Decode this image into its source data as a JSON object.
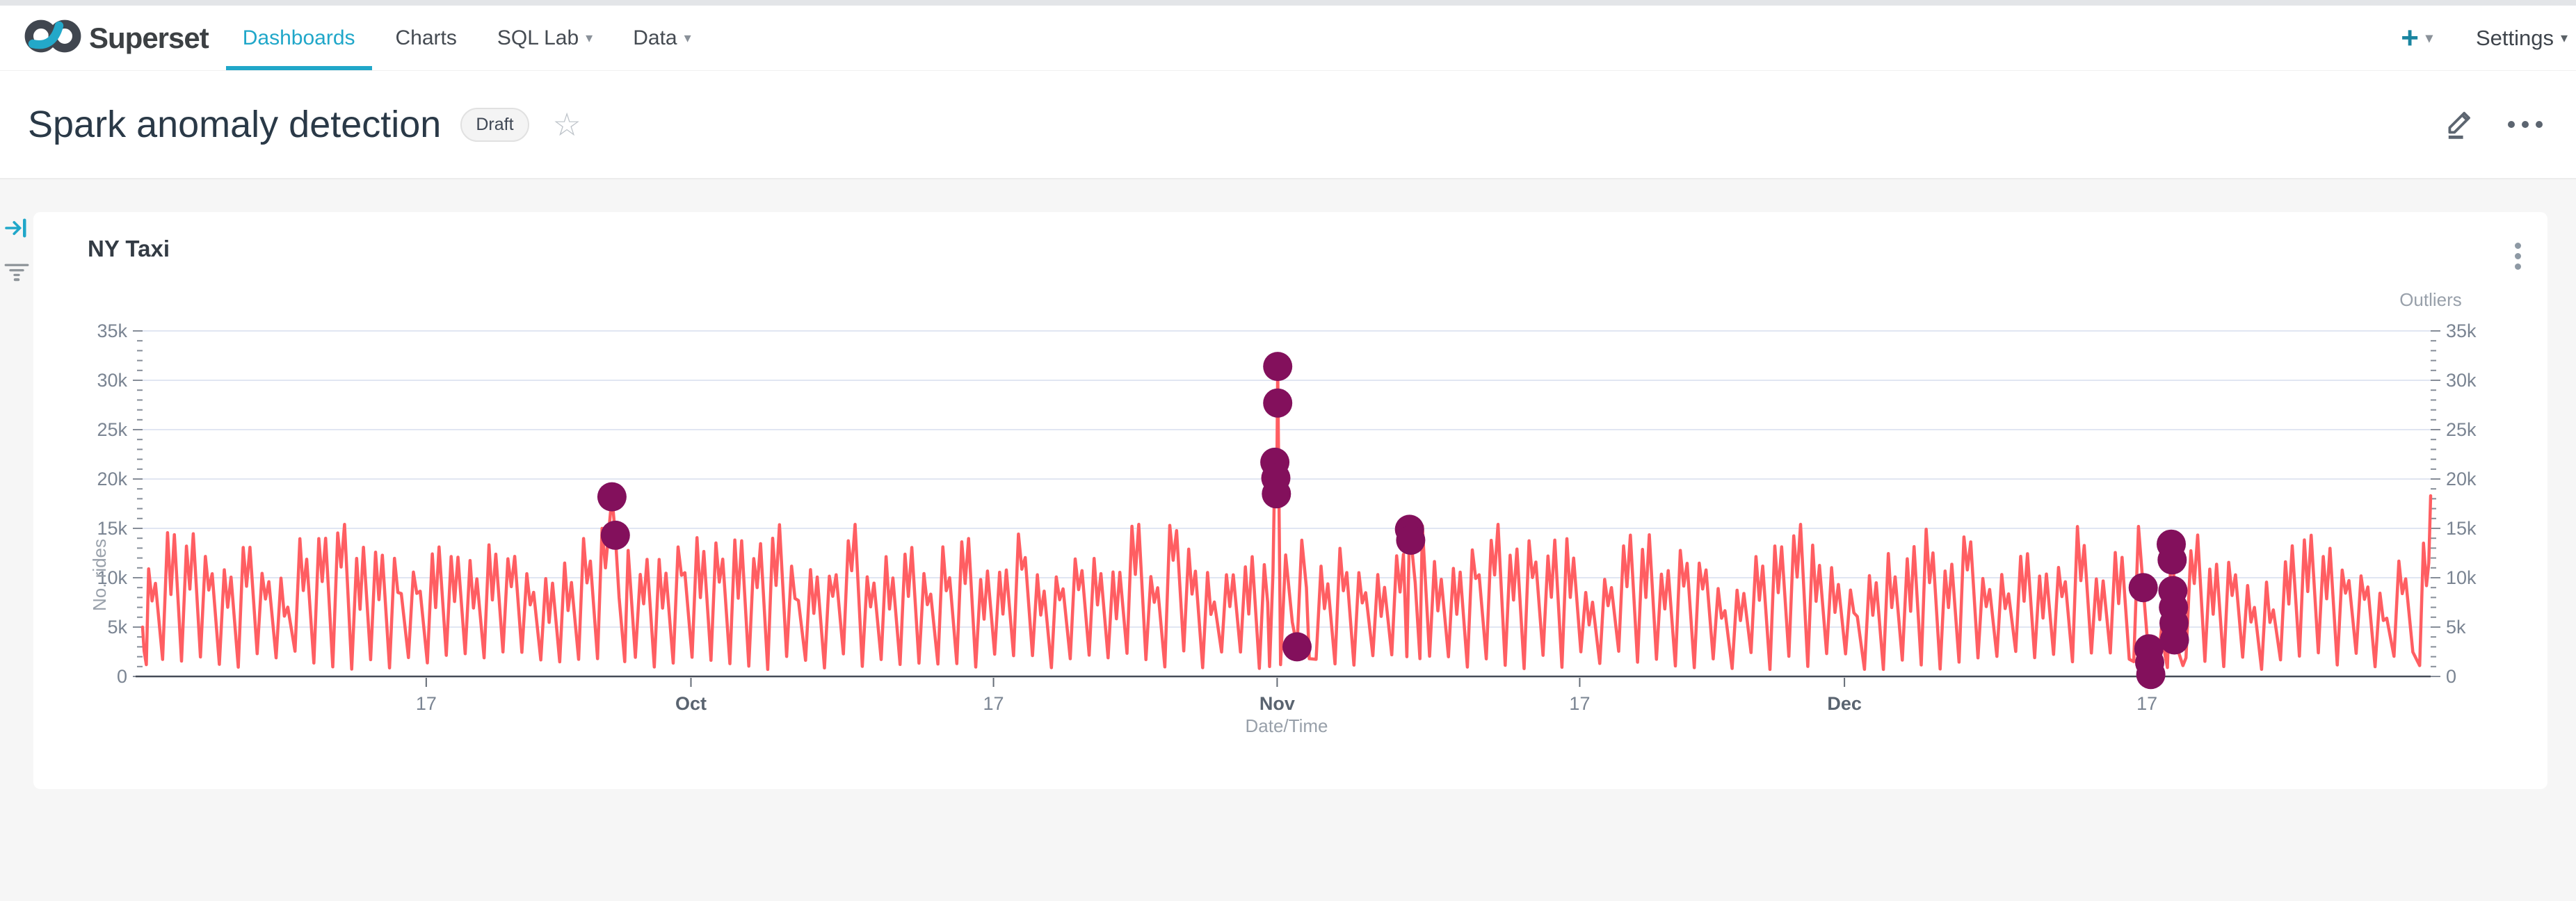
{
  "navbar": {
    "brand": "Superset",
    "items": [
      {
        "label": "Dashboards",
        "active": true,
        "caret": false
      },
      {
        "label": "Charts",
        "active": false,
        "caret": false
      },
      {
        "label": "SQL Lab",
        "active": false,
        "caret": true
      },
      {
        "label": "Data",
        "active": false,
        "caret": true
      }
    ],
    "plus_label": "+",
    "settings_label": "Settings"
  },
  "header": {
    "title": "Spark anomaly detection",
    "badge": "Draft"
  },
  "icons": {
    "caret_down": "▾",
    "star": "☆"
  },
  "chart": {
    "title": "NY Taxi"
  },
  "colors": {
    "accent": "#20A7C9",
    "series_line": "#FF5E62",
    "outlier_dot": "#83105C",
    "grid_line": "#E1E6F2",
    "axis_line": "#454C57",
    "tick": "#868D98"
  },
  "chart_data": {
    "type": "line",
    "title": "NY Taxi",
    "xlabel": "Date/Time",
    "ylabel_left": "No. rides",
    "ylabel_right": "Outliers",
    "y_max": 35000,
    "y_step": 5000,
    "y_minor_step": 1000,
    "y_tick_labels": [
      "0",
      "5k",
      "10k",
      "15k",
      "20k",
      "25k",
      "30k",
      "35k"
    ],
    "x_axis_kind": "time",
    "days": 121,
    "x_ticks": [
      {
        "day": 15,
        "label": "17",
        "bold": false
      },
      {
        "day": 29,
        "label": "Oct",
        "bold": true
      },
      {
        "day": 45,
        "label": "17",
        "bold": false
      },
      {
        "day": 60,
        "label": "Nov",
        "bold": true
      },
      {
        "day": 76,
        "label": "17",
        "bold": false
      },
      {
        "day": 90,
        "label": "Dec",
        "bold": true
      },
      {
        "day": 106,
        "label": "17",
        "bold": false
      }
    ],
    "series_name": "No. rides",
    "line_gen": {
      "seed": 11,
      "trough_min": 700,
      "trough_max": 2600,
      "peak_min": 9800,
      "peak_max": 15400,
      "weekend_factor": 0.86
    },
    "anomaly_segments": [
      {
        "range": [
          0,
          0.3
        ],
        "points": [
          [
            0,
            5000
          ],
          [
            0.08,
            2600
          ],
          [
            0.2,
            1200
          ]
        ]
      },
      {
        "range": [
          24.0,
          25.6
        ],
        "points": [
          [
            24.06,
            1800
          ],
          [
            24.3,
            15000
          ],
          [
            24.48,
            11000
          ],
          [
            24.82,
            18200
          ],
          [
            25.0,
            14300
          ],
          [
            25.2,
            8000
          ],
          [
            25.5,
            1500
          ]
        ]
      },
      {
        "range": [
          59.55,
          61.75
        ],
        "points": [
          [
            59.6,
            1000
          ],
          [
            59.78,
            10500
          ],
          [
            59.88,
            21700
          ],
          [
            59.97,
            17200
          ],
          [
            60.03,
            31400
          ],
          [
            60.18,
            1200
          ],
          [
            60.45,
            12300
          ],
          [
            60.8,
            5500
          ],
          [
            61.05,
            3000
          ],
          [
            61.3,
            13800
          ],
          [
            61.55,
            9000
          ],
          [
            61.7,
            1800
          ]
        ]
      },
      {
        "range": [
          66.8,
          67.65
        ],
        "points": [
          [
            66.86,
            2000
          ],
          [
            67.0,
            14900
          ],
          [
            67.08,
            13800
          ],
          [
            67.3,
            9500
          ],
          [
            67.55,
            1800
          ]
        ]
      },
      {
        "range": [
          105.2,
          107.95
        ],
        "points": [
          [
            105.3,
            1500
          ],
          [
            105.55,
            15200
          ],
          [
            105.8,
            9000
          ],
          [
            106.0,
            4200
          ],
          [
            106.18,
            1500
          ],
          [
            106.3,
            150
          ],
          [
            106.55,
            450
          ],
          [
            106.78,
            5200
          ],
          [
            106.95,
            2200
          ],
          [
            107.08,
            900
          ],
          [
            107.28,
            13400
          ],
          [
            107.38,
            11800
          ],
          [
            107.52,
            5400
          ],
          [
            107.68,
            2400
          ],
          [
            107.9,
            1100
          ]
        ]
      },
      {
        "range": [
          120.3,
          121.01
        ],
        "points": [
          [
            120.42,
            1100
          ],
          [
            120.62,
            13500
          ],
          [
            120.78,
            9200
          ],
          [
            120.9,
            11500
          ],
          [
            121,
            18300
          ]
        ]
      }
    ],
    "outliers": [
      [
        24.82,
        18200
      ],
      [
        25.0,
        14300
      ],
      [
        59.88,
        21700
      ],
      [
        59.93,
        20100
      ],
      [
        59.96,
        18500
      ],
      [
        60.03,
        31400
      ],
      [
        60.03,
        27700
      ],
      [
        61.05,
        3000
      ],
      [
        67.0,
        14900
      ],
      [
        67.06,
        13800
      ],
      [
        105.8,
        9000
      ],
      [
        106.1,
        2800
      ],
      [
        106.14,
        1400
      ],
      [
        106.2,
        200
      ],
      [
        107.28,
        13400
      ],
      [
        107.33,
        11800
      ],
      [
        107.37,
        8700
      ],
      [
        107.4,
        7000
      ],
      [
        107.43,
        5400
      ],
      [
        107.45,
        3700
      ]
    ]
  }
}
